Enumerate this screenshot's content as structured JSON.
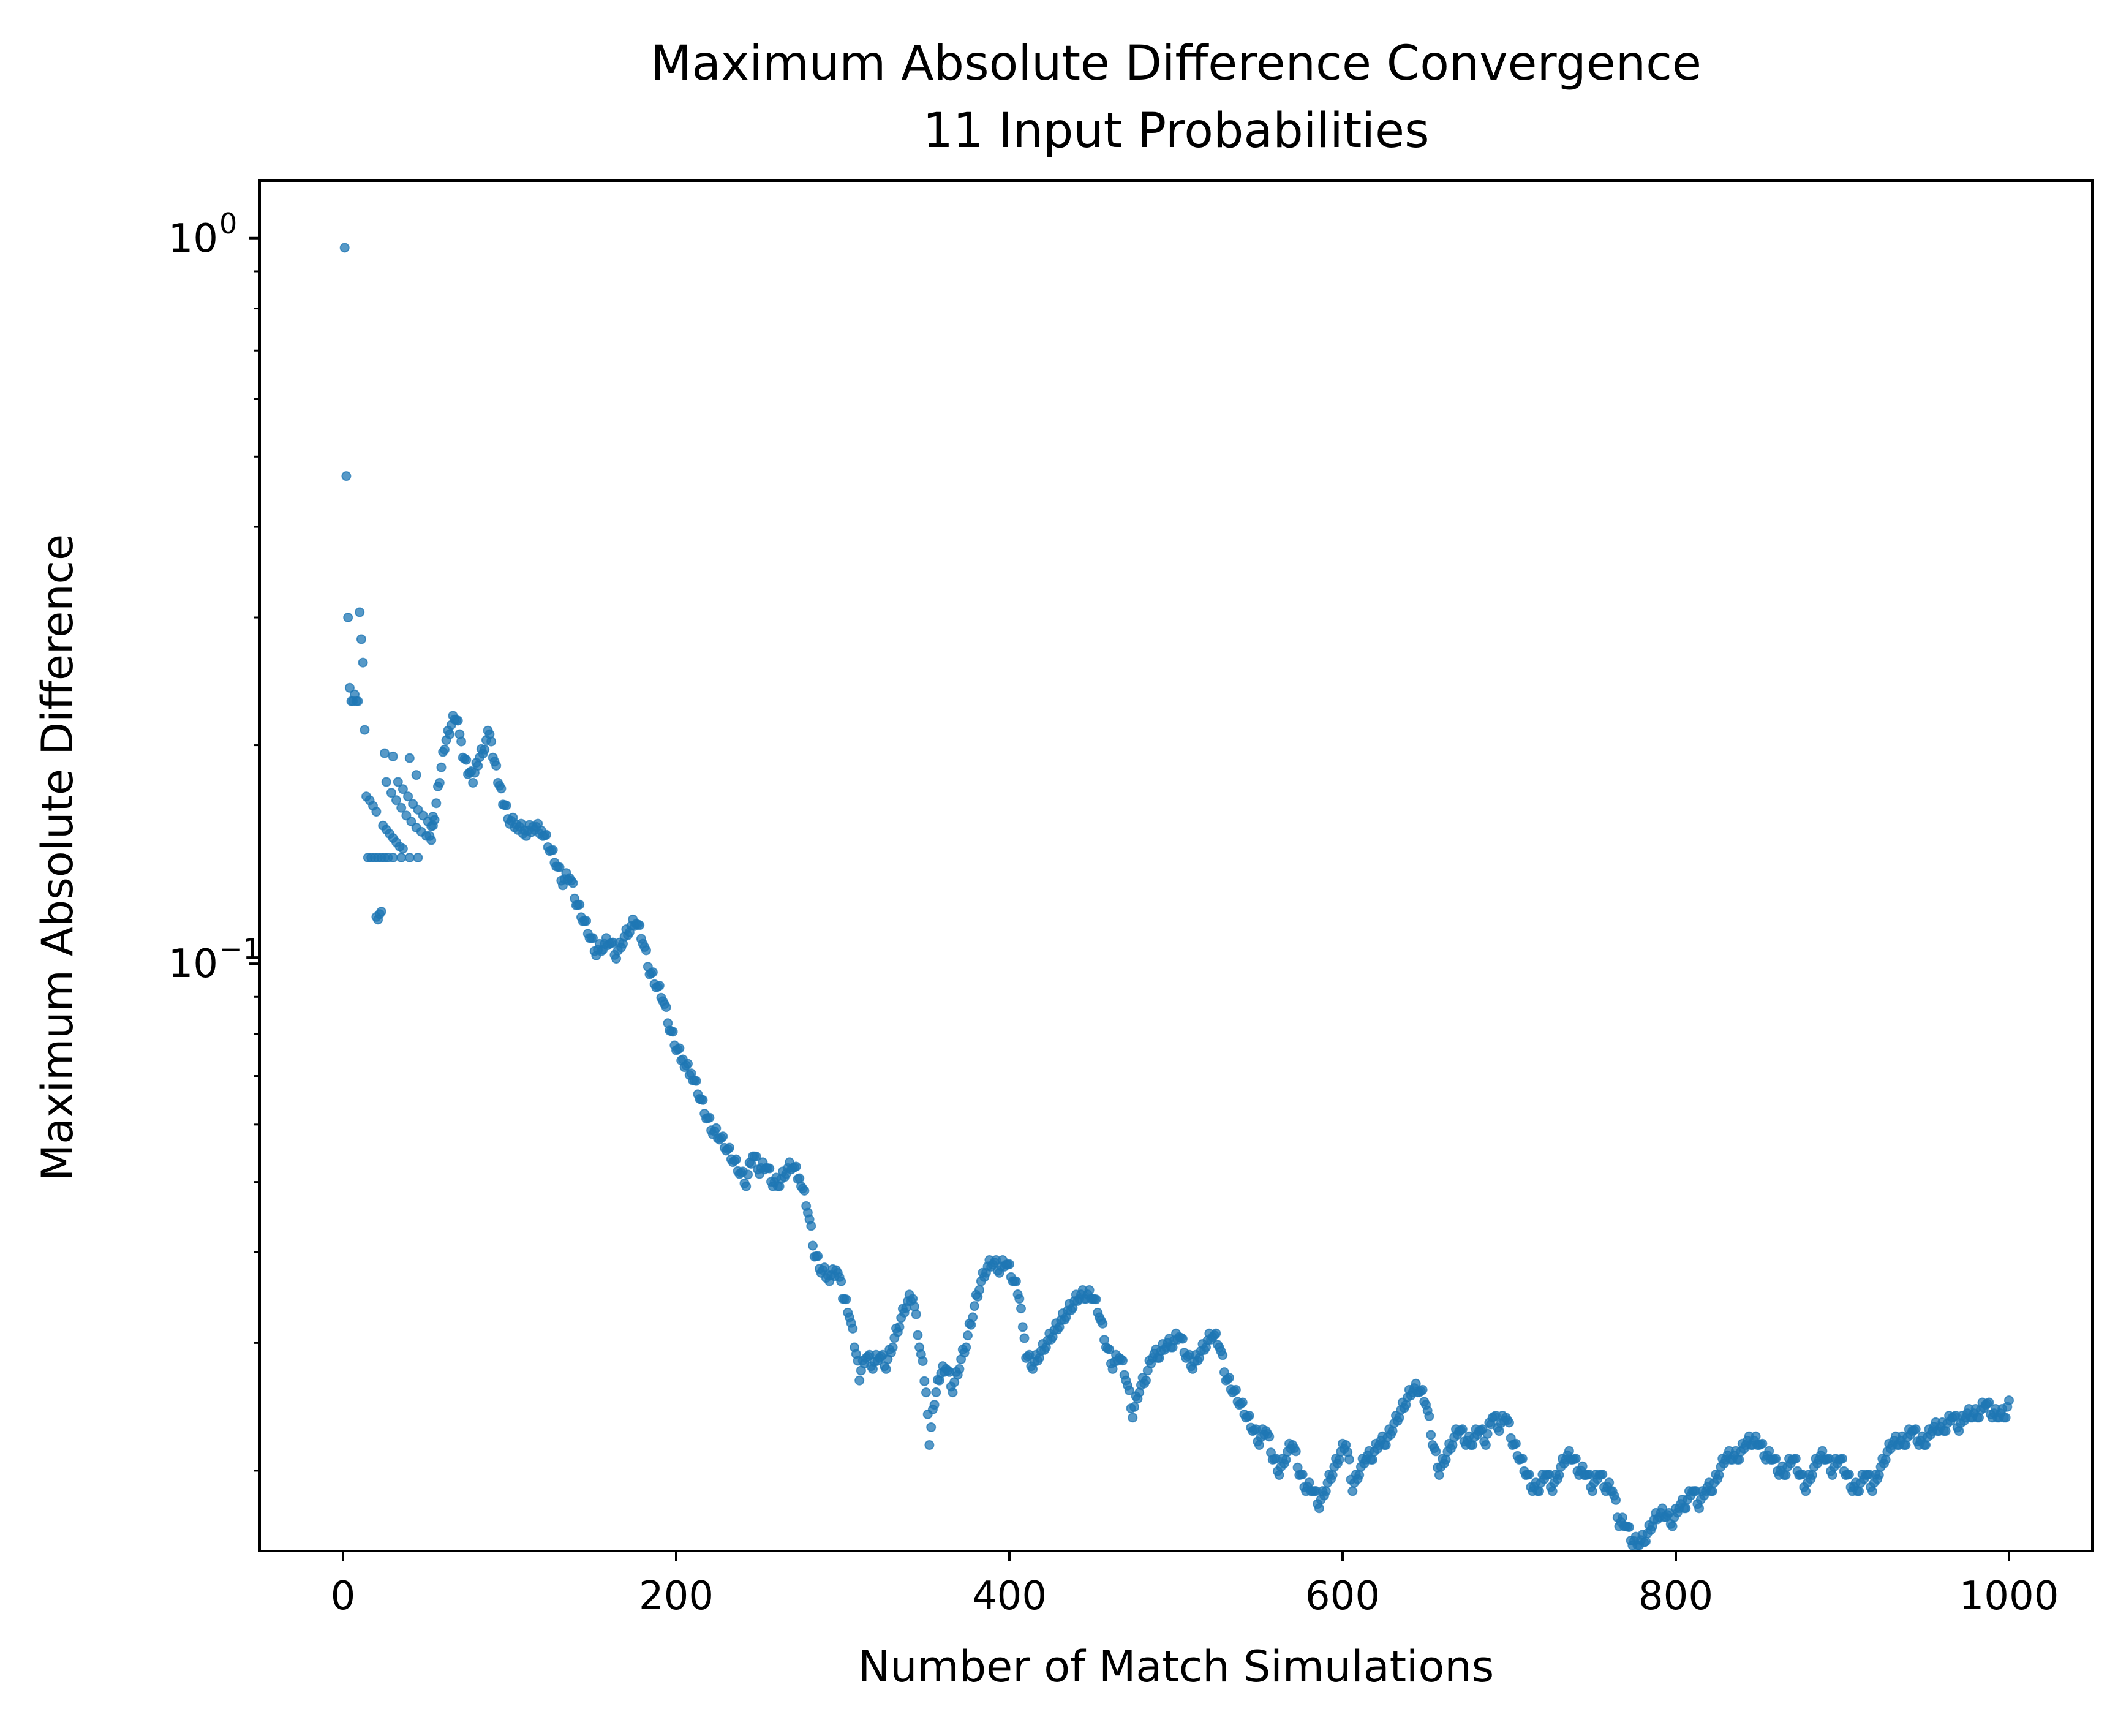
{
  "chart_data": {
    "type": "scatter",
    "title": "Maximum Absolute Difference Convergence",
    "subtitle": "11 Input Probabilities",
    "xlabel": "Number of Match Simulations",
    "ylabel": "Maximum Absolute Difference",
    "xlim": [
      -50,
      1050
    ],
    "ylim": [
      0.0155,
      1.2
    ],
    "yscale": "log",
    "grid": false,
    "legend": "none",
    "x_ticks": [
      0,
      200,
      400,
      600,
      800,
      1000
    ],
    "x_tick_labels": [
      "0",
      "200",
      "400",
      "600",
      "800",
      "1000"
    ],
    "y_ticks": [
      {
        "value": 1,
        "base": "10",
        "exponent": "0"
      },
      {
        "value": 0.1,
        "base": "10",
        "exponent": "−1"
      }
    ],
    "series": [
      {
        "color": "#1f77b4",
        "alpha": 0.75,
        "points": [
          [
            1,
            0.97
          ],
          [
            2,
            0.47
          ],
          [
            3,
            0.3
          ],
          [
            4,
            0.24
          ],
          [
            5,
            0.23
          ],
          [
            6,
            0.23
          ],
          [
            7,
            0.235
          ],
          [
            8,
            0.23
          ],
          [
            9,
            0.23
          ],
          [
            10,
            0.305
          ],
          [
            11,
            0.28
          ],
          [
            12,
            0.26
          ],
          [
            13,
            0.21
          ],
          [
            14,
            0.17
          ],
          [
            16,
            0.168
          ],
          [
            18,
            0.165
          ],
          [
            20,
            0.162
          ],
          [
            15,
            0.14
          ],
          [
            17,
            0.14
          ],
          [
            19,
            0.14
          ],
          [
            21,
            0.14
          ],
          [
            23,
            0.14
          ],
          [
            25,
            0.14
          ],
          [
            27,
            0.14
          ],
          [
            30,
            0.14
          ],
          [
            35,
            0.14
          ],
          [
            40,
            0.14
          ],
          [
            45,
            0.14
          ],
          [
            20,
            0.116
          ],
          [
            21,
            0.115
          ],
          [
            22,
            0.117
          ],
          [
            23,
            0.118
          ],
          [
            24,
            0.155
          ],
          [
            26,
            0.153
          ],
          [
            28,
            0.151
          ],
          [
            30,
            0.149
          ],
          [
            32,
            0.147
          ],
          [
            34,
            0.145
          ],
          [
            36,
            0.144
          ],
          [
            25,
            0.195
          ],
          [
            30,
            0.193
          ],
          [
            26,
            0.178
          ],
          [
            29,
            0.172
          ],
          [
            32,
            0.168
          ],
          [
            35,
            0.164
          ],
          [
            38,
            0.16
          ],
          [
            41,
            0.157
          ],
          [
            44,
            0.154
          ],
          [
            47,
            0.152
          ],
          [
            50,
            0.15
          ],
          [
            53,
            0.148
          ],
          [
            33,
            0.178
          ],
          [
            36,
            0.174
          ],
          [
            39,
            0.17
          ],
          [
            42,
            0.166
          ],
          [
            45,
            0.163
          ],
          [
            48,
            0.16
          ],
          [
            51,
            0.157
          ],
          [
            54,
            0.155
          ],
          [
            40,
            0.192
          ],
          [
            44,
            0.182
          ]
        ],
        "path_points": [
          [
            52,
            0.152
          ],
          [
            55,
            0.16
          ],
          [
            58,
            0.18
          ],
          [
            61,
            0.2
          ],
          [
            64,
            0.21
          ],
          [
            67,
            0.22
          ],
          [
            70,
            0.21
          ],
          [
            72,
            0.195
          ],
          [
            75,
            0.185
          ],
          [
            78,
            0.18
          ],
          [
            81,
            0.19
          ],
          [
            85,
            0.2
          ],
          [
            88,
            0.21
          ],
          [
            90,
            0.195
          ],
          [
            93,
            0.18
          ],
          [
            96,
            0.168
          ],
          [
            100,
            0.158
          ],
          [
            105,
            0.155
          ],
          [
            110,
            0.152
          ],
          [
            115,
            0.155
          ],
          [
            120,
            0.152
          ],
          [
            124,
            0.145
          ],
          [
            128,
            0.138
          ],
          [
            132,
            0.13
          ],
          [
            136,
            0.133
          ],
          [
            140,
            0.122
          ],
          [
            144,
            0.116
          ],
          [
            148,
            0.11
          ],
          [
            152,
            0.104
          ],
          [
            156,
            0.106
          ],
          [
            160,
            0.108
          ],
          [
            164,
            0.103
          ],
          [
            168,
            0.108
          ],
          [
            172,
            0.112
          ],
          [
            176,
            0.115
          ],
          [
            180,
            0.108
          ],
          [
            184,
            0.098
          ],
          [
            188,
            0.094
          ],
          [
            192,
            0.09
          ],
          [
            196,
            0.082
          ],
          [
            200,
            0.077
          ],
          [
            205,
            0.073
          ],
          [
            210,
            0.07
          ],
          [
            214,
            0.066
          ],
          [
            218,
            0.062
          ],
          [
            222,
            0.059
          ],
          [
            226,
            0.058
          ],
          [
            230,
            0.056
          ],
          [
            234,
            0.054
          ],
          [
            238,
            0.052
          ],
          [
            242,
            0.05
          ],
          [
            246,
            0.055
          ],
          [
            250,
            0.052
          ],
          [
            254,
            0.053
          ],
          [
            258,
            0.05
          ],
          [
            262,
            0.05
          ],
          [
            266,
            0.052
          ],
          [
            270,
            0.053
          ],
          [
            275,
            0.05
          ],
          [
            279,
            0.046
          ],
          [
            283,
            0.04
          ],
          [
            287,
            0.038
          ],
          [
            292,
            0.037
          ],
          [
            297,
            0.038
          ],
          [
            300,
            0.035
          ],
          [
            304,
            0.033
          ],
          [
            307,
            0.03
          ],
          [
            310,
            0.027
          ],
          [
            314,
            0.029
          ],
          [
            318,
            0.028
          ],
          [
            322,
            0.029
          ],
          [
            326,
            0.028
          ],
          [
            330,
            0.03
          ],
          [
            334,
            0.032
          ],
          [
            338,
            0.034
          ],
          [
            342,
            0.035
          ],
          [
            346,
            0.03
          ],
          [
            350,
            0.026
          ],
          [
            352,
            0.022
          ],
          [
            355,
            0.025
          ],
          [
            358,
            0.027
          ],
          [
            362,
            0.028
          ],
          [
            366,
            0.026
          ],
          [
            370,
            0.028
          ],
          [
            374,
            0.03
          ],
          [
            378,
            0.033
          ],
          [
            382,
            0.036
          ],
          [
            386,
            0.038
          ],
          [
            390,
            0.039
          ],
          [
            394,
            0.038
          ],
          [
            398,
            0.039
          ],
          [
            402,
            0.037
          ],
          [
            406,
            0.035
          ],
          [
            408,
            0.032
          ],
          [
            410,
            0.029
          ],
          [
            414,
            0.028
          ],
          [
            418,
            0.029
          ],
          [
            422,
            0.03
          ],
          [
            426,
            0.031
          ],
          [
            430,
            0.032
          ],
          [
            434,
            0.033
          ],
          [
            438,
            0.034
          ],
          [
            442,
            0.035
          ],
          [
            446,
            0.035
          ],
          [
            450,
            0.035
          ],
          [
            454,
            0.033
          ],
          [
            458,
            0.03
          ],
          [
            462,
            0.028
          ],
          [
            466,
            0.029
          ],
          [
            470,
            0.027
          ],
          [
            474,
            0.024
          ],
          [
            478,
            0.026
          ],
          [
            482,
            0.027
          ],
          [
            486,
            0.029
          ],
          [
            490,
            0.029
          ],
          [
            494,
            0.03
          ],
          [
            498,
            0.03
          ],
          [
            502,
            0.031
          ],
          [
            506,
            0.029
          ],
          [
            510,
            0.028
          ],
          [
            514,
            0.029
          ],
          [
            518,
            0.03
          ],
          [
            522,
            0.031
          ],
          [
            526,
            0.03
          ],
          [
            530,
            0.027
          ],
          [
            534,
            0.026
          ],
          [
            538,
            0.025
          ],
          [
            542,
            0.024
          ],
          [
            546,
            0.023
          ],
          [
            550,
            0.022
          ],
          [
            554,
            0.023
          ],
          [
            558,
            0.021
          ],
          [
            562,
            0.02
          ],
          [
            566,
            0.021
          ],
          [
            570,
            0.022
          ],
          [
            574,
            0.02
          ],
          [
            578,
            0.019
          ],
          [
            582,
            0.019
          ],
          [
            586,
            0.018
          ],
          [
            590,
            0.019
          ],
          [
            594,
            0.02
          ],
          [
            598,
            0.021
          ],
          [
            602,
            0.022
          ],
          [
            606,
            0.019
          ],
          [
            610,
            0.02
          ],
          [
            614,
            0.021
          ],
          [
            618,
            0.021
          ],
          [
            622,
            0.022
          ],
          [
            626,
            0.022
          ],
          [
            630,
            0.023
          ],
          [
            634,
            0.024
          ],
          [
            638,
            0.025
          ],
          [
            642,
            0.026
          ],
          [
            646,
            0.026
          ],
          [
            650,
            0.025
          ],
          [
            654,
            0.022
          ],
          [
            658,
            0.02
          ],
          [
            662,
            0.021
          ],
          [
            666,
            0.022
          ],
          [
            670,
            0.023
          ],
          [
            674,
            0.022
          ],
          [
            678,
            0.022
          ],
          [
            682,
            0.023
          ],
          [
            686,
            0.022
          ],
          [
            690,
            0.024
          ],
          [
            694,
            0.023
          ],
          [
            698,
            0.024
          ],
          [
            702,
            0.022
          ],
          [
            706,
            0.021
          ],
          [
            710,
            0.02
          ],
          [
            714,
            0.019
          ],
          [
            718,
            0.019
          ],
          [
            722,
            0.02
          ],
          [
            726,
            0.019
          ],
          [
            730,
            0.02
          ],
          [
            734,
            0.021
          ],
          [
            738,
            0.021
          ],
          [
            742,
            0.02
          ],
          [
            746,
            0.02
          ],
          [
            750,
            0.019
          ],
          [
            754,
            0.02
          ],
          [
            758,
            0.019
          ],
          [
            762,
            0.019
          ],
          [
            766,
            0.017
          ],
          [
            770,
            0.017
          ],
          [
            774,
            0.016
          ],
          [
            778,
            0.016
          ],
          [
            782,
            0.0162
          ],
          [
            786,
            0.017
          ],
          [
            790,
            0.0175
          ],
          [
            794,
            0.0175
          ],
          [
            798,
            0.017
          ],
          [
            802,
            0.018
          ],
          [
            806,
            0.018
          ],
          [
            810,
            0.019
          ],
          [
            814,
            0.018
          ],
          [
            818,
            0.019
          ],
          [
            822,
            0.019
          ],
          [
            826,
            0.02
          ],
          [
            830,
            0.021
          ],
          [
            834,
            0.021
          ],
          [
            838,
            0.021
          ],
          [
            842,
            0.022
          ],
          [
            846,
            0.022
          ],
          [
            850,
            0.022
          ],
          [
            854,
            0.021
          ],
          [
            858,
            0.021
          ],
          [
            862,
            0.02
          ],
          [
            866,
            0.02
          ],
          [
            870,
            0.021
          ],
          [
            874,
            0.02
          ],
          [
            878,
            0.019
          ],
          [
            882,
            0.02
          ],
          [
            886,
            0.021
          ],
          [
            890,
            0.021
          ],
          [
            894,
            0.02
          ],
          [
            898,
            0.021
          ],
          [
            902,
            0.02
          ],
          [
            906,
            0.019
          ],
          [
            910,
            0.019
          ],
          [
            914,
            0.02
          ],
          [
            918,
            0.019
          ],
          [
            922,
            0.02
          ],
          [
            926,
            0.021
          ],
          [
            930,
            0.022
          ],
          [
            934,
            0.022
          ],
          [
            938,
            0.022
          ],
          [
            942,
            0.023
          ],
          [
            946,
            0.022
          ],
          [
            950,
            0.022
          ],
          [
            954,
            0.023
          ],
          [
            958,
            0.023
          ],
          [
            962,
            0.023
          ],
          [
            966,
            0.024
          ],
          [
            970,
            0.023
          ],
          [
            974,
            0.024
          ],
          [
            978,
            0.024
          ],
          [
            982,
            0.024
          ],
          [
            986,
            0.025
          ],
          [
            990,
            0.024
          ],
          [
            994,
            0.024
          ],
          [
            998,
            0.024
          ],
          [
            1000,
            0.025
          ]
        ]
      }
    ]
  }
}
